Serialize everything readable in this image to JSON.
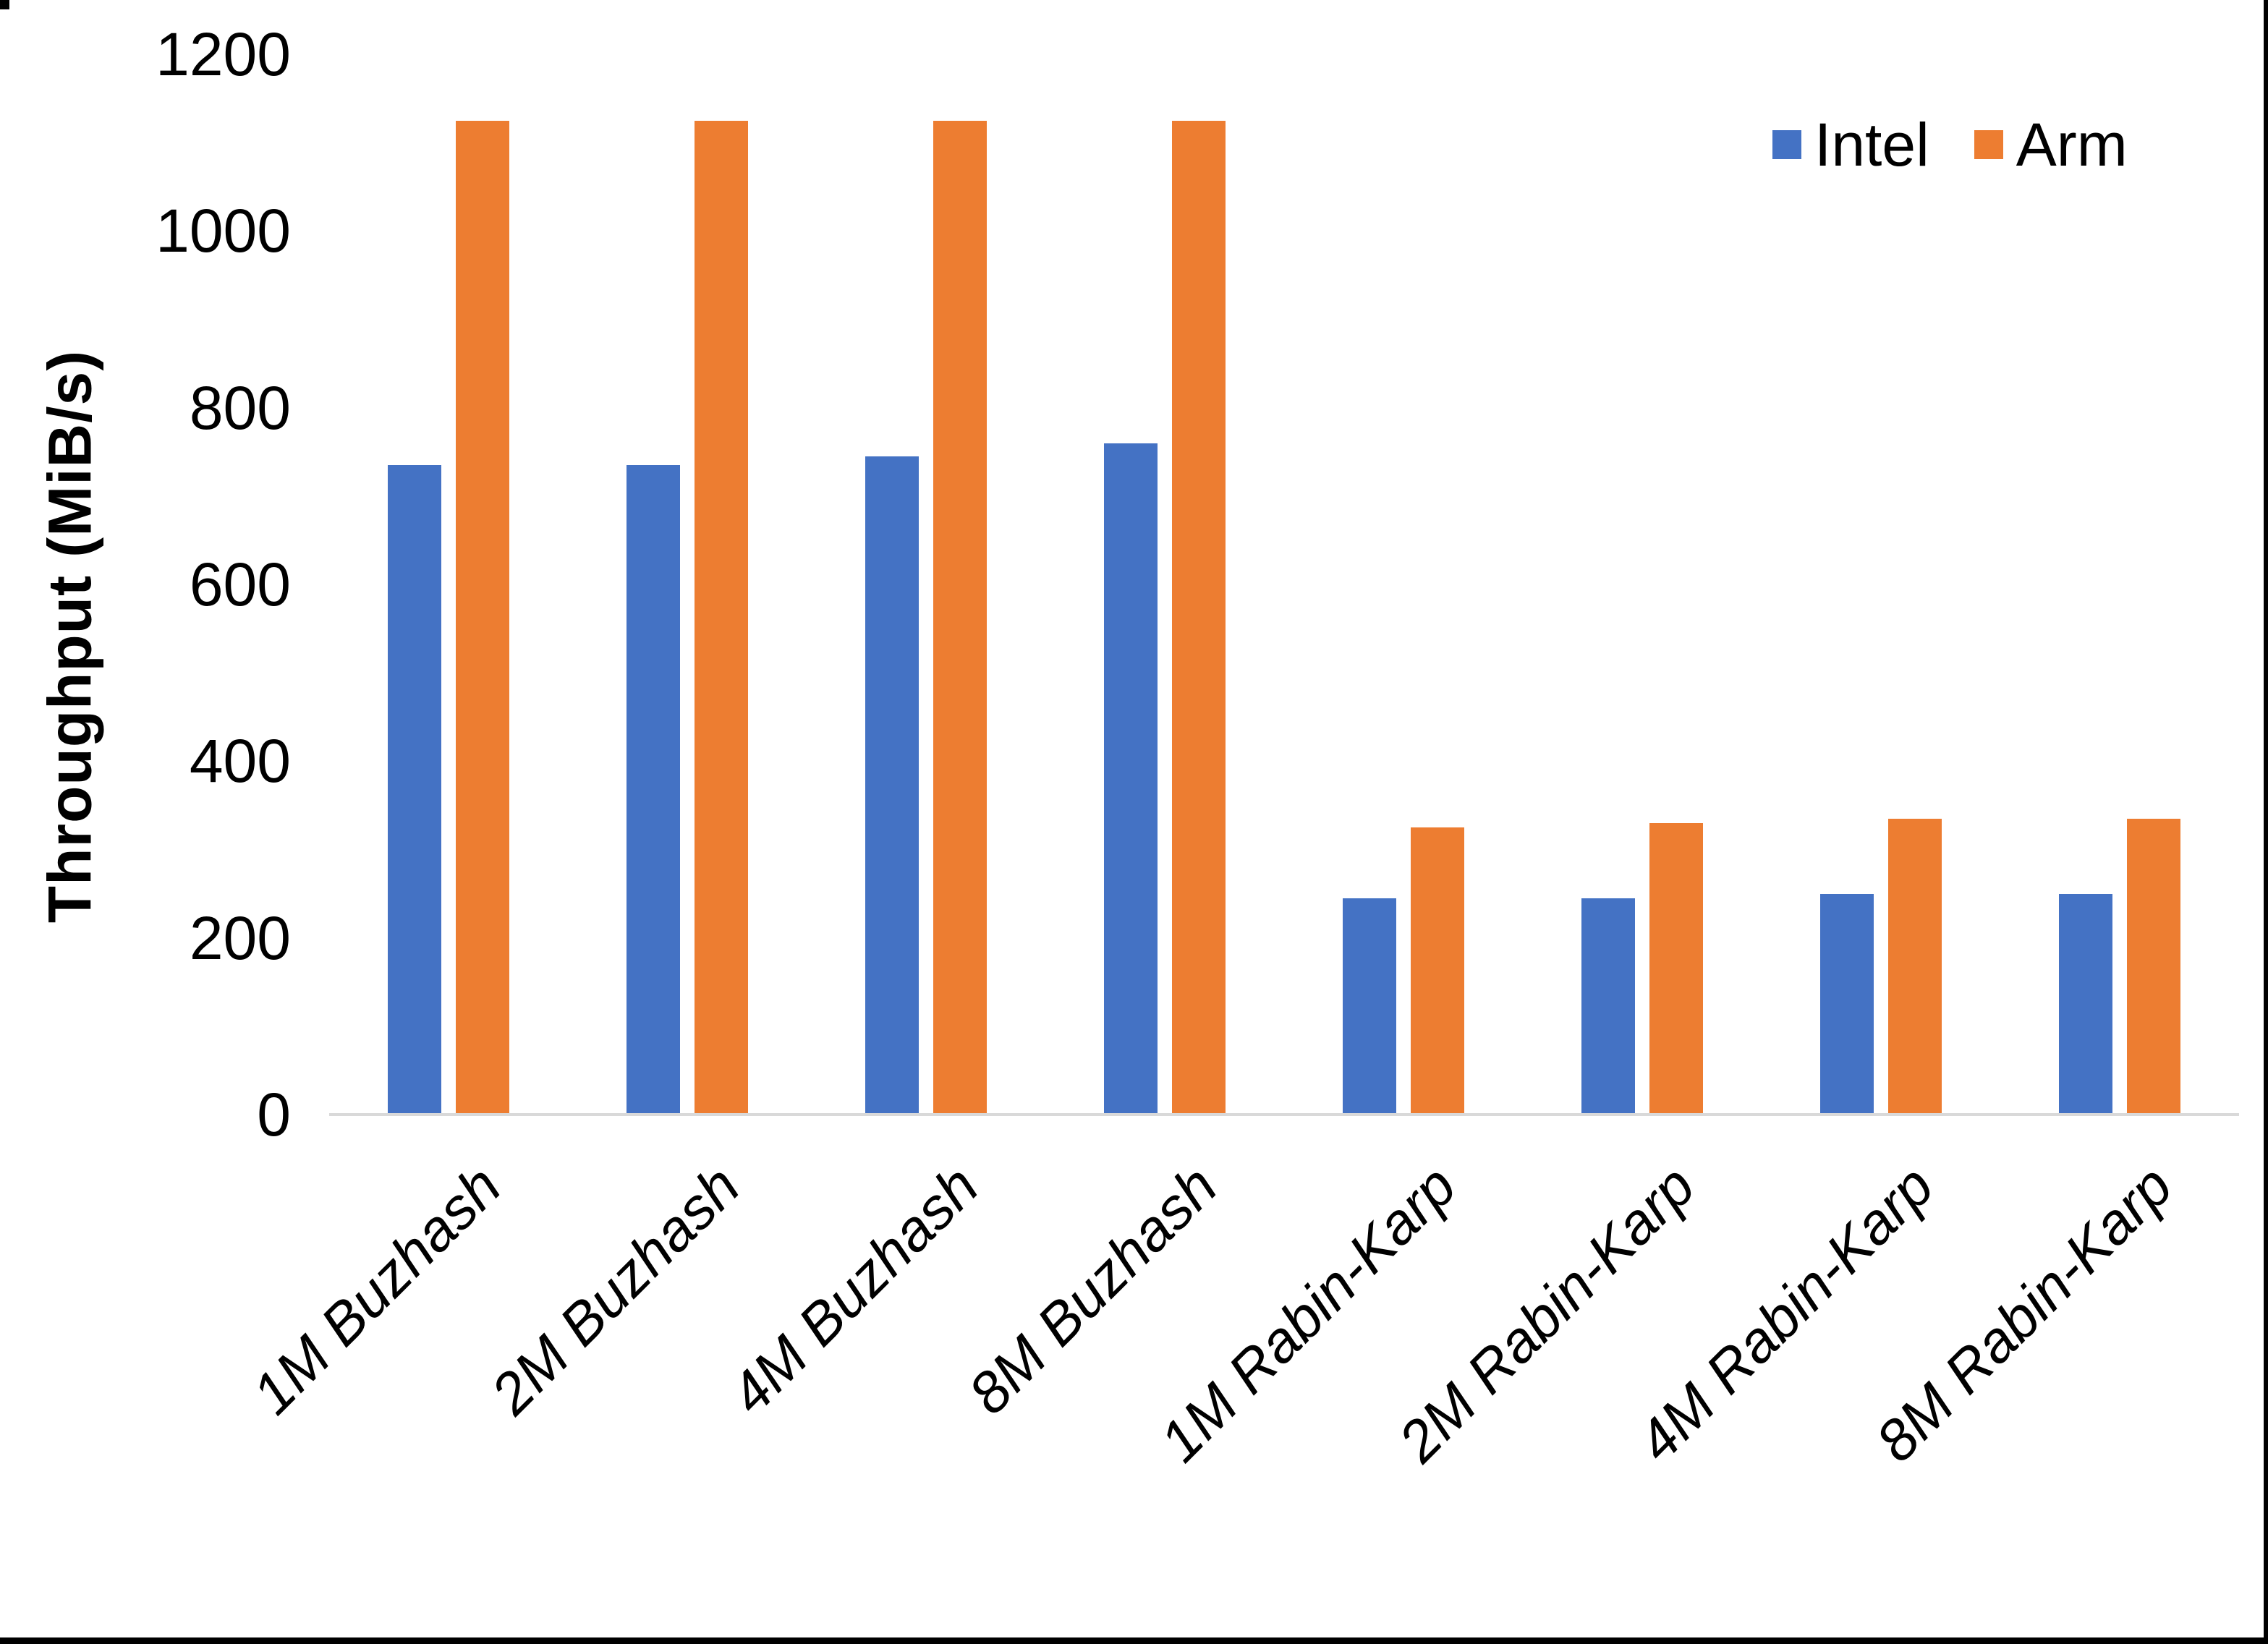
{
  "figure": {
    "background": "#ffffff",
    "page_border_color": "#000000",
    "axis_line_color": "#d9d9d9"
  },
  "chart_data": {
    "type": "bar",
    "title": "",
    "xlabel": "",
    "ylabel": "Throughput (MiB/s)",
    "ylim": [
      0,
      1200
    ],
    "yticks": [
      0,
      200,
      400,
      600,
      800,
      1000,
      1200
    ],
    "grid": false,
    "legend_position": "top-right",
    "categories": [
      "1M Buzhash",
      "2M Buzhash",
      "4M Buzhash",
      "8M Buzhash",
      "1M Rabin-Karp",
      "2M Rabin-Karp",
      "4M Rabin-Karp",
      "8M Rabin-Karp"
    ],
    "series": [
      {
        "name": "Intel",
        "color": "#4472c4",
        "values": [
          735,
          735,
          745,
          760,
          245,
          245,
          250,
          250
        ]
      },
      {
        "name": "Arm",
        "color": "#ed7d31",
        "values": [
          1125,
          1125,
          1125,
          1125,
          325,
          330,
          335,
          335
        ]
      }
    ]
  }
}
